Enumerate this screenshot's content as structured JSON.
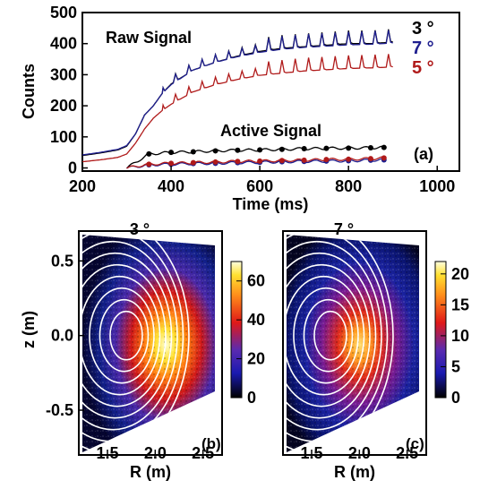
{
  "colors": {
    "black": "#000000",
    "blue": "#1f1f8f",
    "red": "#b01a1a",
    "axis": "#000000"
  },
  "chart_data": [
    {
      "type": "line",
      "panel_label": "(a)",
      "xlabel": "Time (ms)",
      "ylabel": "Counts",
      "xlim": [
        200,
        1050
      ],
      "ylim": [
        -10,
        500
      ],
      "xticks": [
        200,
        400,
        600,
        800,
        1000
      ],
      "yticks": [
        0,
        100,
        200,
        300,
        400,
        500
      ],
      "annotations": {
        "raw": "Raw Signal",
        "active": "Active Signal"
      },
      "legend": [
        {
          "label": "3 °",
          "color": "#000000"
        },
        {
          "label": "7 °",
          "color": "#1f1f8f"
        },
        {
          "label": "5 °",
          "color": "#b01a1a"
        }
      ],
      "series": [
        {
          "color": "#000000",
          "x": [
            200,
            240,
            280,
            300,
            320,
            340,
            360,
            380,
            400,
            450,
            500,
            550,
            600,
            650,
            700,
            750,
            800,
            850,
            900
          ],
          "y": [
            40,
            48,
            58,
            70,
            110,
            170,
            200,
            240,
            270,
            315,
            340,
            360,
            375,
            385,
            390,
            395,
            400,
            400,
            405
          ]
        },
        {
          "color": "#1f1f8f",
          "x": [
            200,
            240,
            280,
            300,
            320,
            340,
            360,
            380,
            400,
            450,
            500,
            550,
            600,
            650,
            700,
            750,
            800,
            850,
            900
          ],
          "y": [
            42,
            50,
            60,
            72,
            110,
            170,
            200,
            240,
            268,
            315,
            340,
            358,
            372,
            382,
            388,
            392,
            396,
            398,
            402
          ]
        },
        {
          "color": "#b01a1a",
          "x": [
            200,
            240,
            280,
            300,
            320,
            340,
            360,
            380,
            400,
            450,
            500,
            550,
            600,
            650,
            700,
            750,
            800,
            850,
            900
          ],
          "y": [
            20,
            26,
            34,
            45,
            80,
            125,
            160,
            185,
            205,
            245,
            268,
            285,
            298,
            305,
            312,
            316,
            320,
            322,
            325
          ]
        },
        {
          "color": "#000000",
          "x": [
            300,
            350,
            400,
            450,
            500,
            550,
            600,
            650,
            700,
            750,
            800,
            850,
            880
          ],
          "y": [
            0,
            45,
            50,
            52,
            55,
            57,
            58,
            60,
            62,
            63,
            64,
            65,
            66
          ]
        },
        {
          "color": "#1f1f8f",
          "x": [
            300,
            350,
            400,
            450,
            500,
            550,
            600,
            650,
            700,
            750,
            800,
            850,
            880
          ],
          "y": [
            0,
            10,
            12,
            14,
            15,
            17,
            18,
            20,
            21,
            22,
            23,
            25,
            26
          ]
        },
        {
          "color": "#b01a1a",
          "x": [
            300,
            350,
            400,
            450,
            500,
            550,
            600,
            650,
            700,
            750,
            800,
            850,
            880
          ],
          "y": [
            0,
            12,
            15,
            17,
            19,
            21,
            22,
            24,
            25,
            27,
            28,
            30,
            32
          ]
        }
      ]
    },
    {
      "type": "heatmap",
      "title": "3 °",
      "panel_label": "(b)",
      "xlabel": "R (m)",
      "ylabel": "z (m)",
      "xlim": [
        1.2,
        2.7
      ],
      "ylim": [
        -0.8,
        0.7
      ],
      "xticks": [
        1.5,
        2.0,
        2.5
      ],
      "yticks": [
        -0.5,
        0.0,
        0.5
      ],
      "colorbar_ticks": [
        0,
        20,
        40,
        60
      ],
      "colorbar_range": [
        0,
        70
      ],
      "peak_value": 65,
      "peak_R": 1.88,
      "peak_z": 0.0
    },
    {
      "type": "heatmap",
      "title": "7 °",
      "panel_label": "(c)",
      "xlabel": "R (m)",
      "xlim": [
        1.2,
        2.7
      ],
      "ylim": [
        -0.8,
        0.7
      ],
      "xticks": [
        1.5,
        2.0,
        2.5
      ],
      "colorbar_ticks": [
        0,
        5,
        10,
        15,
        20
      ],
      "colorbar_range": [
        0,
        22
      ],
      "peak_value": 18,
      "peak_R": 1.78,
      "peak_z": 0.0
    }
  ]
}
